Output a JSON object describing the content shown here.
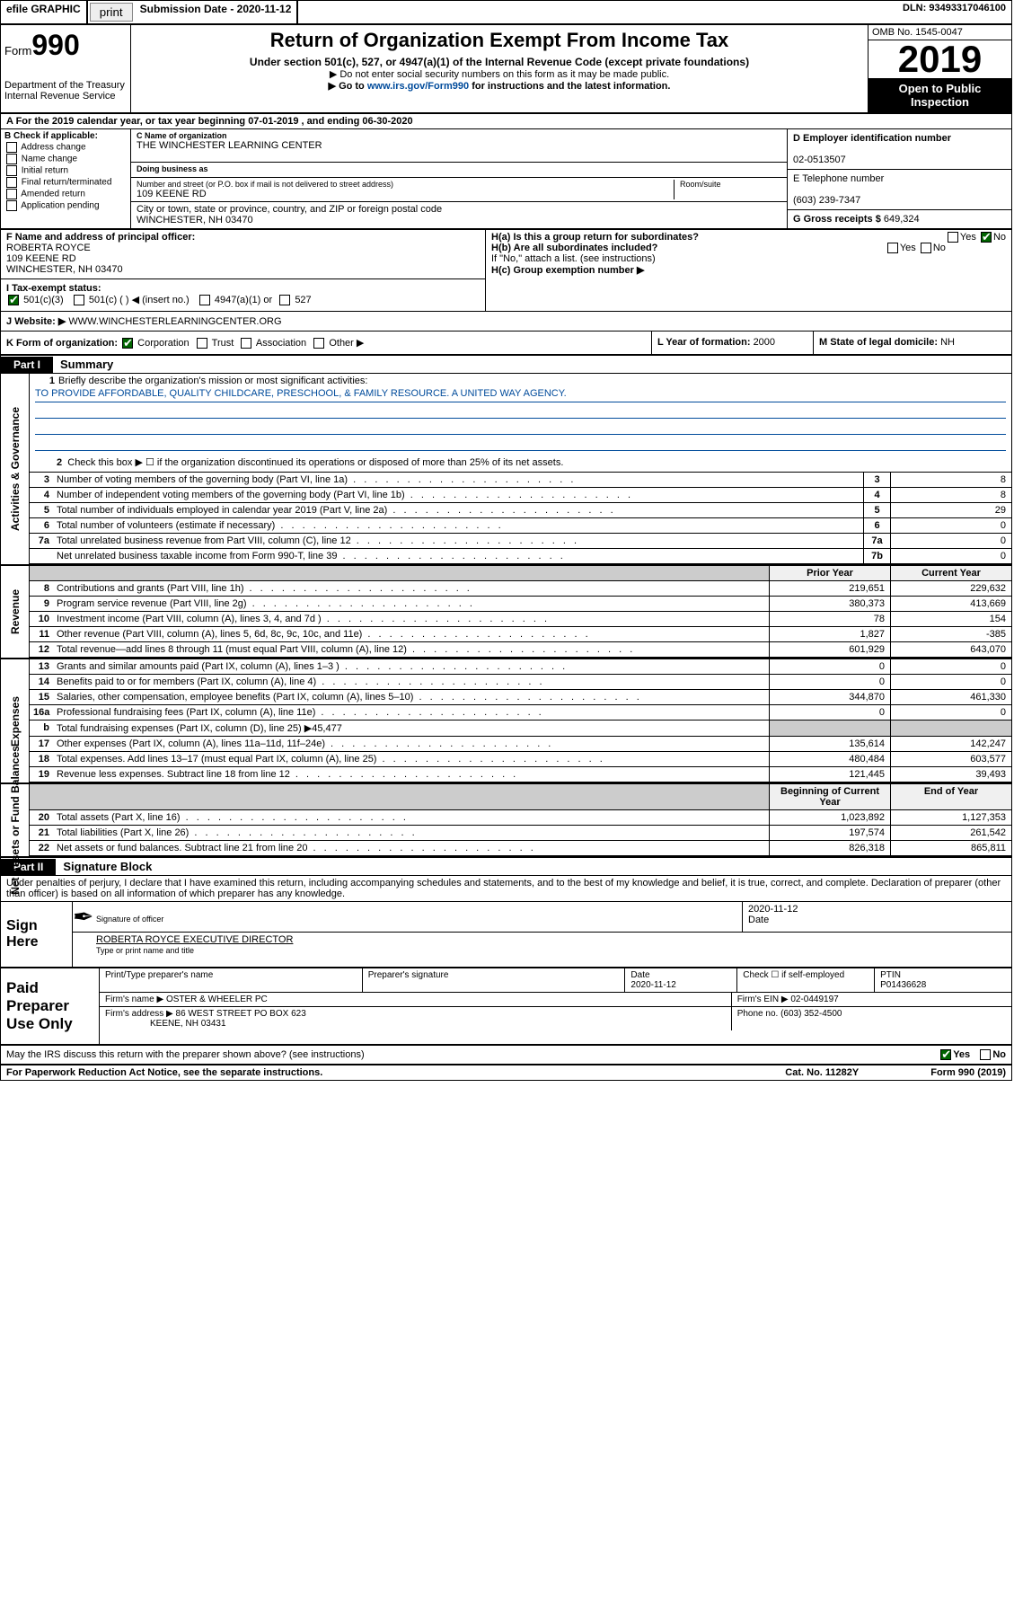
{
  "topbar": {
    "efile": "efile GRAPHIC",
    "print": "print",
    "subdate_label": "Submission Date - ",
    "subdate": "2020-11-12",
    "dln_label": "DLN: ",
    "dln": "93493317046100"
  },
  "header": {
    "form_prefix": "Form",
    "form_num": "990",
    "dept": "Department of the Treasury\nInternal Revenue Service",
    "title": "Return of Organization Exempt From Income Tax",
    "sub1": "Under section 501(c), 527, or 4947(a)(1) of the Internal Revenue Code (except private foundations)",
    "sub2": "▶ Do not enter social security numbers on this form as it may be made public.",
    "sub3_pre": "▶ Go to ",
    "sub3_link": "www.irs.gov/Form990",
    "sub3_post": " for instructions and the latest information.",
    "omb": "OMB No. 1545-0047",
    "year": "2019",
    "openpub": "Open to Public Inspection"
  },
  "rowA": "A For the 2019 calendar year, or tax year beginning 07-01-2019    , and ending 06-30-2020",
  "boxB": {
    "lead": "B Check if applicable:",
    "items": [
      "Address change",
      "Name change",
      "Initial return",
      "Final return/terminated",
      "Amended return",
      "Application pending"
    ]
  },
  "boxC": {
    "name_lbl": "C Name of organization",
    "name": "THE WINCHESTER LEARNING CENTER",
    "dba_lbl": "Doing business as",
    "dba": "",
    "street_lbl": "Number and street (or P.O. box if mail is not delivered to street address)",
    "room_lbl": "Room/suite",
    "street": "109 KEENE RD",
    "city_lbl": "City or town, state or province, country, and ZIP or foreign postal code",
    "city": "WINCHESTER, NH  03470"
  },
  "boxD": {
    "lbl": "D Employer identification number",
    "val": "02-0513507"
  },
  "boxE": {
    "lbl": "E Telephone number",
    "val": "(603) 239-7347"
  },
  "boxG": {
    "lbl": "G Gross receipts $ ",
    "val": "649,324"
  },
  "boxF": {
    "lbl": "F  Name and address of principal officer:",
    "name": "ROBERTA ROYCE",
    "addr1": "109 KEENE RD",
    "addr2": "WINCHESTER, NH  03470"
  },
  "boxH": {
    "a": "H(a)  Is this a group return for subordinates?",
    "b": "H(b)  Are all subordinates included?",
    "note": "If \"No,\" attach a list. (see instructions)",
    "c": "H(c)  Group exemption number ▶",
    "yes": "Yes",
    "no": "No"
  },
  "rowI": {
    "lbl": "I     Tax-exempt status:",
    "opts": [
      "501(c)(3)",
      "501(c) (  ) ◀ (insert no.)",
      "4947(a)(1) or",
      "527"
    ]
  },
  "rowJ": {
    "lbl": "J    Website: ▶  ",
    "val": "WWW.WINCHESTERLEARNINGCENTER.ORG"
  },
  "rowK": {
    "lbl": "K Form of organization:",
    "opts": [
      "Corporation",
      "Trust",
      "Association",
      "Other ▶"
    ]
  },
  "rowL": {
    "lbl": "L Year of formation: ",
    "val": "2000"
  },
  "rowM": {
    "lbl": "M State of legal domicile: ",
    "val": "NH"
  },
  "part1": {
    "tab": "Part I",
    "title": "Summary"
  },
  "summary": {
    "q1_lbl": "Briefly describe the organization's mission or most significant activities:",
    "q1_val": "TO PROVIDE AFFORDABLE, QUALITY CHILDCARE, PRESCHOOL, & FAMILY RESOURCE. A UNITED WAY AGENCY.",
    "q2": "Check this box ▶ ☐  if the organization discontinued its operations or disposed of more than 25% of its net assets.",
    "lines_gov": [
      {
        "n": "3",
        "t": "Number of voting members of the governing body (Part VI, line 1a)",
        "box": "3",
        "v": "8"
      },
      {
        "n": "4",
        "t": "Number of independent voting members of the governing body (Part VI, line 1b)",
        "box": "4",
        "v": "8"
      },
      {
        "n": "5",
        "t": "Total number of individuals employed in calendar year 2019 (Part V, line 2a)",
        "box": "5",
        "v": "29"
      },
      {
        "n": "6",
        "t": "Total number of volunteers (estimate if necessary)",
        "box": "6",
        "v": "0"
      },
      {
        "n": "7a",
        "t": "Total unrelated business revenue from Part VIII, column (C), line 12",
        "box": "7a",
        "v": "0"
      },
      {
        "n": "",
        "t": "Net unrelated business taxable income from Form 990-T, line 39",
        "box": "7b",
        "v": "0"
      }
    ],
    "gov_label": "Activities & Governance",
    "rev_label": "Revenue",
    "exp_label": "Expenses",
    "nab_label": "Net Assets or Fund Balances",
    "col_prior": "Prior Year",
    "col_current": "Current Year",
    "col_boy": "Beginning of Current Year",
    "col_eoy": "End of Year",
    "lines_rev": [
      {
        "n": "8",
        "t": "Contributions and grants (Part VIII, line 1h)",
        "p": "219,651",
        "c": "229,632"
      },
      {
        "n": "9",
        "t": "Program service revenue (Part VIII, line 2g)",
        "p": "380,373",
        "c": "413,669"
      },
      {
        "n": "10",
        "t": "Investment income (Part VIII, column (A), lines 3, 4, and 7d )",
        "p": "78",
        "c": "154"
      },
      {
        "n": "11",
        "t": "Other revenue (Part VIII, column (A), lines 5, 6d, 8c, 9c, 10c, and 11e)",
        "p": "1,827",
        "c": "-385"
      },
      {
        "n": "12",
        "t": "Total revenue—add lines 8 through 11 (must equal Part VIII, column (A), line 12)",
        "p": "601,929",
        "c": "643,070"
      }
    ],
    "lines_exp": [
      {
        "n": "13",
        "t": "Grants and similar amounts paid (Part IX, column (A), lines 1–3 )",
        "p": "0",
        "c": "0"
      },
      {
        "n": "14",
        "t": "Benefits paid to or for members (Part IX, column (A), line 4)",
        "p": "0",
        "c": "0"
      },
      {
        "n": "15",
        "t": "Salaries, other compensation, employee benefits (Part IX, column (A), lines 5–10)",
        "p": "344,870",
        "c": "461,330"
      },
      {
        "n": "16a",
        "t": "Professional fundraising fees (Part IX, column (A), line 11e)",
        "p": "0",
        "c": "0"
      }
    ],
    "line16b": {
      "n": "b",
      "t": "Total fundraising expenses (Part IX, column (D), line 25) ▶45,477"
    },
    "lines_exp2": [
      {
        "n": "17",
        "t": "Other expenses (Part IX, column (A), lines 11a–11d, 11f–24e)",
        "p": "135,614",
        "c": "142,247"
      },
      {
        "n": "18",
        "t": "Total expenses. Add lines 13–17 (must equal Part IX, column (A), line 25)",
        "p": "480,484",
        "c": "603,577"
      },
      {
        "n": "19",
        "t": "Revenue less expenses. Subtract line 18 from line 12",
        "p": "121,445",
        "c": "39,493"
      }
    ],
    "lines_nab": [
      {
        "n": "20",
        "t": "Total assets (Part X, line 16)",
        "p": "1,023,892",
        "c": "1,127,353"
      },
      {
        "n": "21",
        "t": "Total liabilities (Part X, line 26)",
        "p": "197,574",
        "c": "261,542"
      },
      {
        "n": "22",
        "t": "Net assets or fund balances. Subtract line 21 from line 20",
        "p": "826,318",
        "c": "865,811"
      }
    ]
  },
  "part2": {
    "tab": "Part II",
    "title": "Signature Block"
  },
  "perjury": "Under penalties of perjury, I declare that I have examined this return, including accompanying schedules and statements, and to the best of my knowledge and belief, it is true, correct, and complete. Declaration of preparer (other than officer) is based on all information of which preparer has any knowledge.",
  "sign": {
    "label": "Sign Here",
    "sig_lbl": "Signature of officer",
    "date_lbl": "Date",
    "date": "2020-11-12",
    "name": "ROBERTA ROYCE  EXECUTIVE DIRECTOR",
    "name_lbl": "Type or print name and title"
  },
  "paid": {
    "label": "Paid Preparer Use Only",
    "cols": [
      "Print/Type preparer's name",
      "Preparer's signature",
      "Date",
      "",
      "PTIN"
    ],
    "date": "2020-11-12",
    "check_lbl": "Check ☐ if self-employed",
    "ptin": "P01436628",
    "firm_lbl": "Firm's name     ▶ ",
    "firm": "OSTER & WHEELER PC",
    "ein_lbl": "Firm's EIN ▶ ",
    "ein": "02-0449197",
    "addr_lbl": "Firm's address ▶ ",
    "addr": "86 WEST STREET PO BOX 623",
    "addr2": "KEENE, NH  03431",
    "phone_lbl": "Phone no. ",
    "phone": "(603) 352-4500"
  },
  "discuss": {
    "q": "May the IRS discuss this return with the preparer shown above? (see instructions)",
    "yes": "Yes",
    "no": "No"
  },
  "footer": {
    "left": "For Paperwork Reduction Act Notice, see the separate instructions.",
    "mid": "Cat. No. 11282Y",
    "right": "Form 990 (2019)"
  }
}
